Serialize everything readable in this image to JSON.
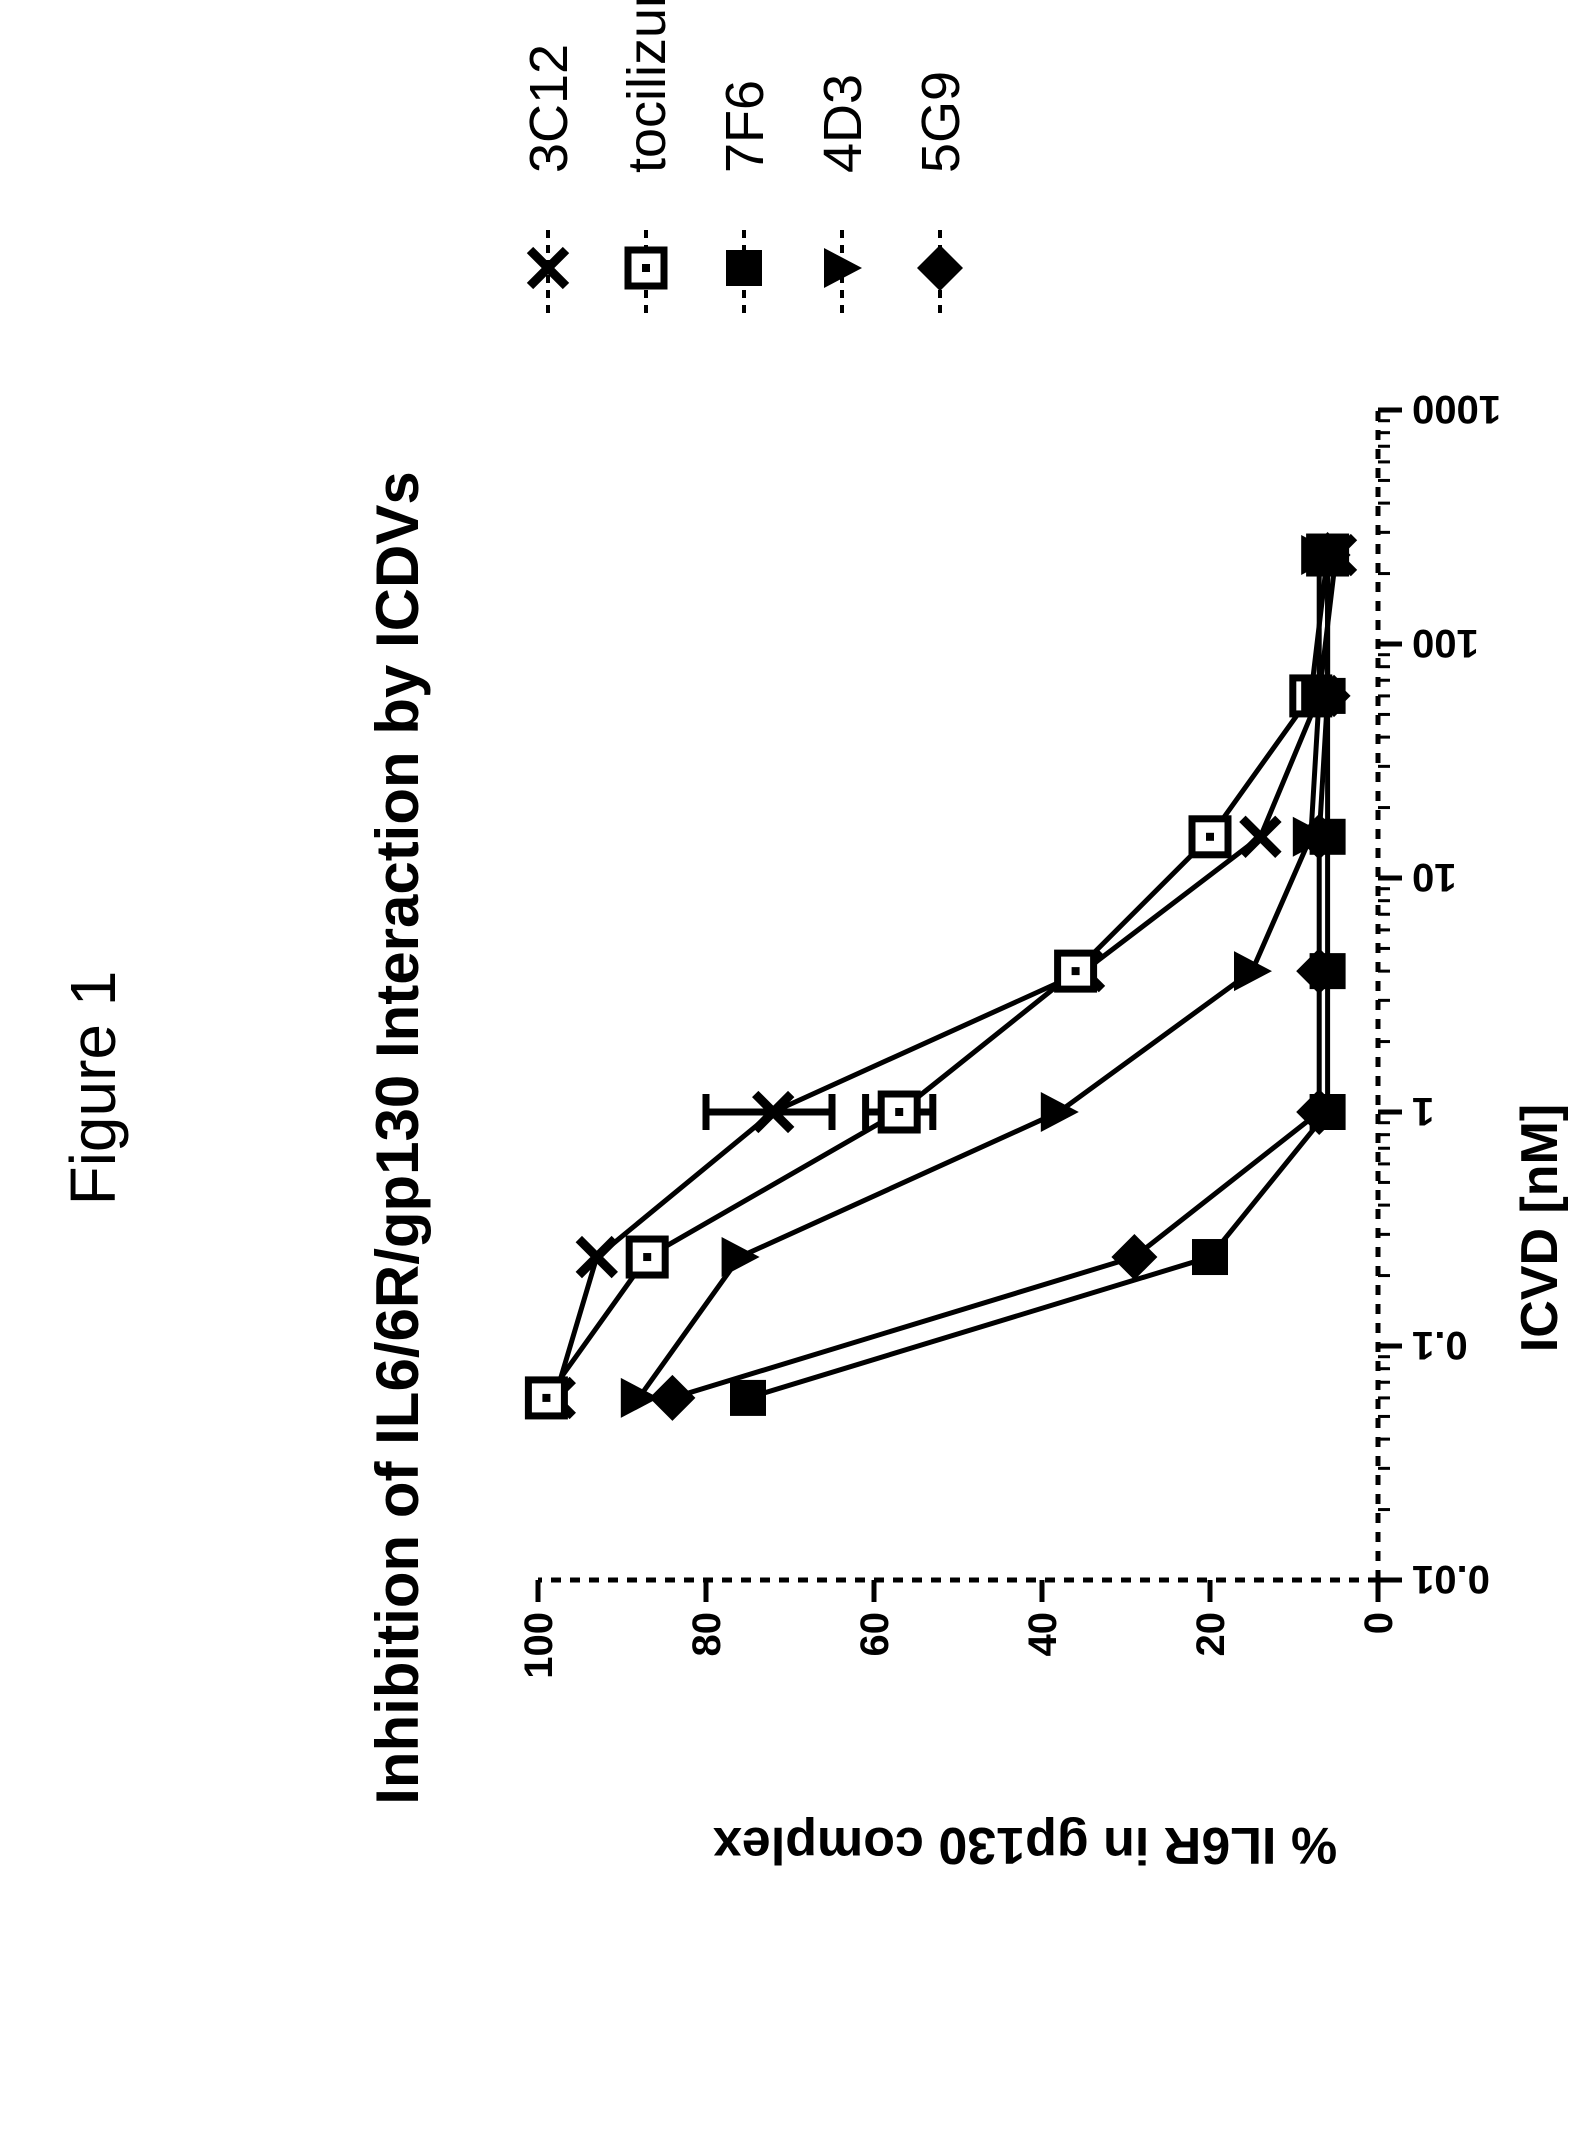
{
  "figure_label": "Figure 1",
  "chart_data": {
    "type": "line",
    "title": "Inhibition of IL6/6R/gp130 Interaction by ICDVs",
    "xlabel": "ICVD [nM]",
    "ylabel": "% IL6R in gp130 complex",
    "x_scale": "log",
    "xlim": [
      0.01,
      1000
    ],
    "ylim": [
      0,
      100
    ],
    "x_ticks": [
      "0.01",
      "0.1",
      "1",
      "10",
      "100",
      "1000"
    ],
    "y_ticks": [
      "0",
      "20",
      "40",
      "60",
      "80",
      "100"
    ],
    "x": [
      0.06,
      0.24,
      1,
      4,
      15,
      60,
      240
    ],
    "series": [
      {
        "name": "3C12",
        "marker": "x",
        "values": [
          98,
          93,
          72,
          35,
          14,
          7,
          5
        ],
        "err_low": [
          null,
          null,
          65,
          null,
          null,
          null,
          null
        ],
        "err_high": [
          null,
          null,
          80,
          null,
          null,
          null,
          null
        ]
      },
      {
        "name": "tocilizumab",
        "marker": "square-open",
        "values": [
          99,
          87,
          57,
          36,
          20,
          8,
          6
        ],
        "err_low": [
          null,
          null,
          53,
          null,
          null,
          null,
          null
        ],
        "err_high": [
          null,
          null,
          61,
          null,
          null,
          null,
          null
        ]
      },
      {
        "name": "7F6",
        "marker": "square",
        "values": [
          75,
          20,
          6,
          6,
          6,
          6,
          6
        ],
        "err_low": [
          null,
          null,
          null,
          null,
          null,
          null,
          null
        ],
        "err_high": [
          null,
          null,
          null,
          null,
          null,
          null,
          null
        ]
      },
      {
        "name": "4D3",
        "marker": "triangle-down",
        "values": [
          88,
          76,
          38,
          15,
          8,
          7,
          7
        ],
        "err_low": [
          null,
          null,
          null,
          null,
          null,
          null,
          null
        ],
        "err_high": [
          null,
          null,
          null,
          null,
          null,
          null,
          null
        ]
      },
      {
        "name": "5G9",
        "marker": "diamond",
        "values": [
          84,
          29,
          7,
          7,
          7,
          6,
          6
        ],
        "err_low": [
          null,
          null,
          null,
          null,
          null,
          null,
          null
        ],
        "err_high": [
          null,
          null,
          null,
          null,
          null,
          null,
          null
        ]
      }
    ],
    "legend_placement": "top-right",
    "grid": false
  }
}
